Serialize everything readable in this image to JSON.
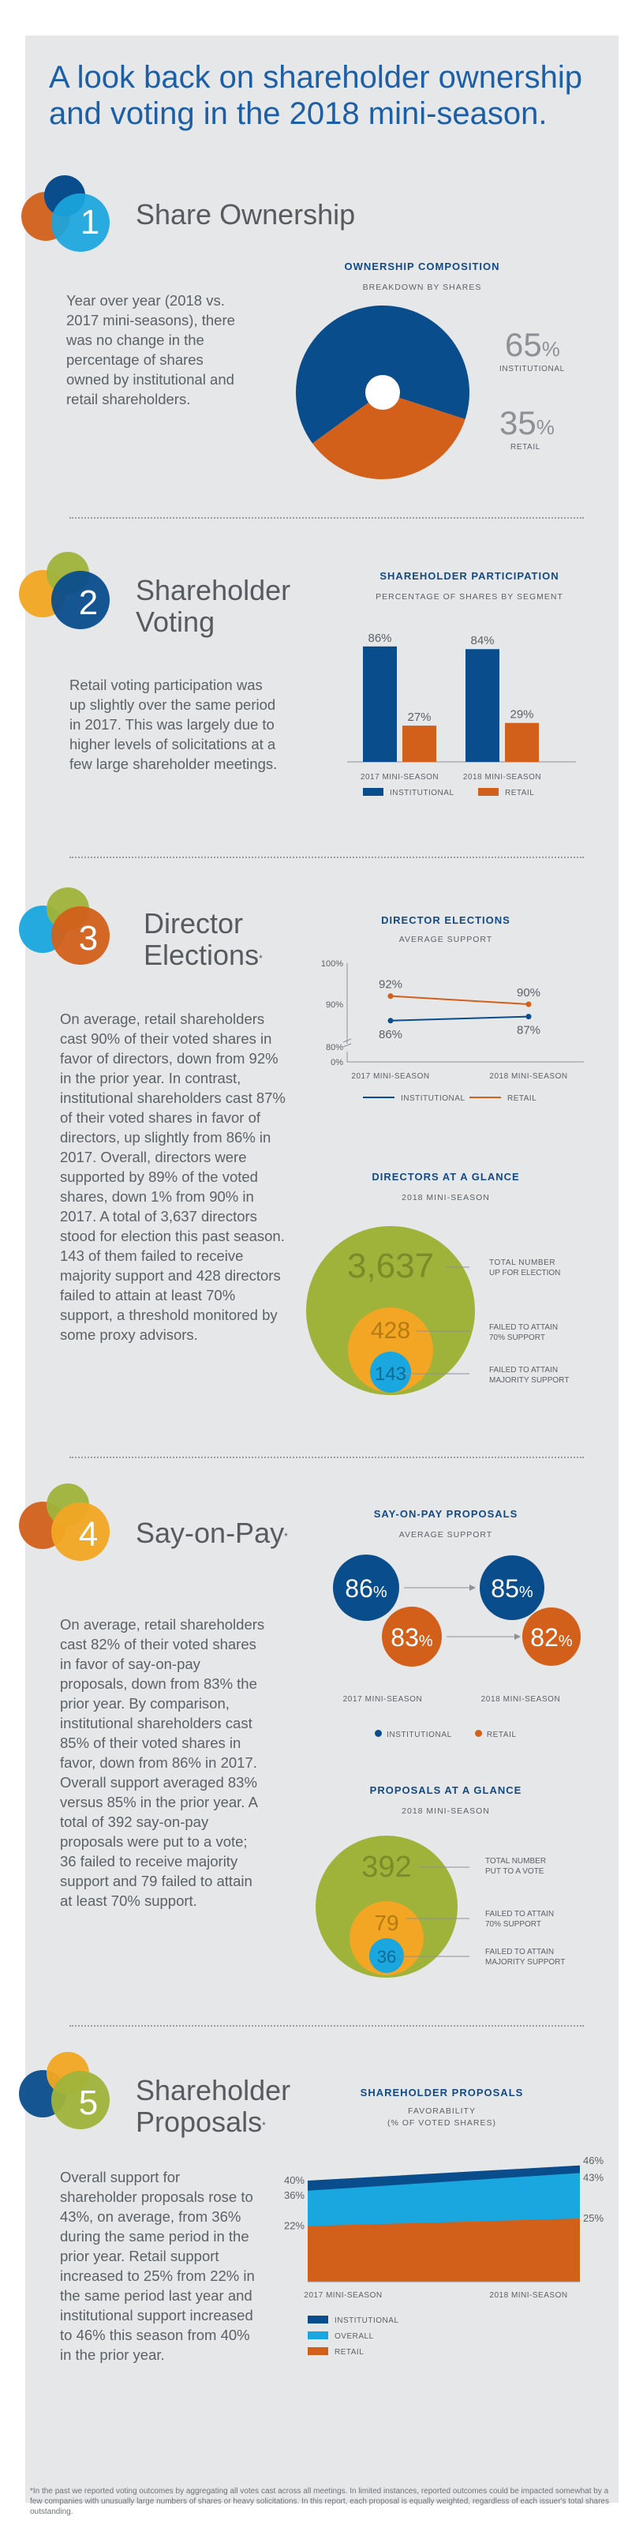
{
  "title": "A look back on shareholder ownership and voting in the 2018 mini-season.",
  "colors": {
    "blue": "#0a4d8c",
    "orange": "#d2601a",
    "lightblue": "#1aa6de",
    "green": "#9fb33a",
    "yellow": "#f2a623",
    "panel": "#e6e7e8"
  },
  "s1": {
    "number": "1",
    "title": "Share Ownership",
    "body": "Year over year (2018 vs. 2017 mini-seasons), there was no change in the percentage of shares owned by institutional and retail shareholders.",
    "chart_title": "OWNERSHIP COMPOSITION",
    "chart_sub": "BREAKDOWN BY SHARES",
    "inst_pct": "65",
    "inst_label": "INSTITUTIONAL",
    "retail_pct": "35",
    "retail_label": "RETAIL",
    "pct_sign": "%"
  },
  "s2": {
    "number": "2",
    "title1": "Shareholder",
    "title2": "Voting",
    "body": "Retail voting participation was up slightly over the same period in 2017. This was largely due to higher levels of solicitations at a few large shareholder meetings.",
    "chart_title": "SHAREHOLDER PARTICIPATION",
    "chart_sub": "PERCENTAGE OF SHARES BY SEGMENT",
    "legend_inst": "INSTITUTIONAL",
    "legend_retail": "RETAIL"
  },
  "s3": {
    "number": "3",
    "title1": "Director",
    "title2": "Elections",
    "sup": "*",
    "body": "On average, retail shareholders cast 90% of their voted shares in favor of directors, down from 92% in the prior year. In contrast, institutional shareholders cast 87% of their voted shares in favor of directors, up slightly from 86% in 2017. Overall, directors were supported by 89% of the voted shares, down 1% from 90% in 2017. A total of 3,637 directors stood for election this past season. 143 of them failed to receive majority support and 428 directors failed to attain at least 70% support, a threshold monitored by some proxy advisors.",
    "chart_title": "DIRECTOR ELECTIONS",
    "chart_sub": "AVERAGE SUPPORT",
    "legend_inst": "INSTITUTIONAL",
    "legend_retail": "RETAIL",
    "glance_title": "DIRECTORS AT A GLANCE",
    "glance_sub": "2018 MINI-SEASON",
    "big": "3,637",
    "mid": "428",
    "small": "143",
    "big_lbl1": "TOTAL NUMBER",
    "big_lbl2": "UP FOR ELECTION",
    "mid_lbl1": "FAILED TO ATTAIN",
    "mid_lbl2": "70% SUPPORT",
    "small_lbl1": "FAILED TO ATTAIN",
    "small_lbl2": "MAJORITY SUPPORT"
  },
  "s4": {
    "number": "4",
    "title": "Say-on-Pay",
    "sup": "*",
    "body": "On average, retail shareholders cast 82% of their voted shares in favor of say-on-pay proposals, down from 83% the prior year. By comparison, institutional shareholders cast 85% of their voted shares in favor, down from 86% in 2017. Overall support averaged 83% versus 85% in the prior year. A total of 392 say-on-pay proposals were put to a vote; 36 failed to receive majority support and 79 failed to attain at least 70% support.",
    "chart_title": "SAY-ON-PAY PROPOSALS",
    "chart_sub": "AVERAGE SUPPORT",
    "inst_2017": "86",
    "retail_2017": "83",
    "inst_2018": "85",
    "retail_2018": "82",
    "pct": "%",
    "label_2017": "2017 MINI-SEASON",
    "label_2018": "2018 MINI-SEASON",
    "legend_inst": "INSTITUTIONAL",
    "legend_retail": "RETAIL",
    "glance_title": "PROPOSALS AT A GLANCE",
    "glance_sub": "2018 MINI-SEASON",
    "big": "392",
    "mid": "79",
    "small": "36",
    "big_lbl1": "TOTAL NUMBER",
    "big_lbl2": "PUT TO A VOTE",
    "mid_lbl1": "FAILED TO ATTAIN",
    "mid_lbl2": "70% SUPPORT",
    "small_lbl1": "FAILED TO ATTAIN",
    "small_lbl2": "MAJORITY SUPPORT"
  },
  "s5": {
    "number": "5",
    "title1": "Shareholder",
    "title2": "Proposals",
    "sup": "*",
    "body": "Overall support for shareholder proposals rose to 43%, on average, from 36% during the same period in the prior year. Retail support increased to 25% from 22% in the same period last year and institutional support increased to 46% this season from 40% in the prior year.",
    "chart_title": "SHAREHOLDER PROPOSALS",
    "chart_sub1": "FAVORABILITY",
    "chart_sub2": "(% OF VOTED SHARES)",
    "legend_inst": "INSTITUTIONAL",
    "legend_overall": "OVERALL",
    "legend_retail": "RETAIL"
  },
  "footnote": "*In the past we reported voting outcomes by aggregating all votes cast across all meetings. In limited instances, reported outcomes could be impacted somewhat by a few companies with unusually large numbers of shares or heavy solicitations. In this report, each proposal is equally weighted, regardless of each issuer's total shares outstanding.",
  "chart_data": [
    {
      "type": "pie",
      "title": "OWNERSHIP COMPOSITION",
      "subtitle": "BREAKDOWN BY SHARES",
      "categories": [
        "INSTITUTIONAL",
        "RETAIL"
      ],
      "values": [
        65,
        35
      ]
    },
    {
      "type": "bar",
      "title": "SHAREHOLDER PARTICIPATION",
      "subtitle": "PERCENTAGE OF SHARES BY SEGMENT",
      "categories": [
        "2017 MINI-SEASON",
        "2018 MINI-SEASON"
      ],
      "series": [
        {
          "name": "INSTITUTIONAL",
          "values": [
            86,
            84
          ]
        },
        {
          "name": "RETAIL",
          "values": [
            27,
            29
          ]
        }
      ],
      "value_labels": [
        [
          "86%",
          "84%"
        ],
        [
          "27%",
          "29%"
        ]
      ],
      "ylim": [
        0,
        100
      ]
    },
    {
      "type": "line",
      "title": "DIRECTOR ELECTIONS",
      "subtitle": "AVERAGE SUPPORT",
      "categories": [
        "2017 MINI-SEASON",
        "2018 MINI-SEASON"
      ],
      "series": [
        {
          "name": "INSTITUTIONAL",
          "values": [
            86,
            87
          ]
        },
        {
          "name": "RETAIL",
          "values": [
            92,
            90
          ]
        }
      ],
      "value_labels": [
        [
          "86%",
          "87%"
        ],
        [
          "92%",
          "90%"
        ]
      ],
      "yticks": [
        "100%",
        "90%",
        "80%",
        "0%"
      ],
      "axis_break": true
    },
    {
      "type": "area",
      "title": "SHAREHOLDER PROPOSALS",
      "subtitle": "FAVORABILITY (% OF VOTED SHARES)",
      "categories": [
        "2017 MINI-SEASON",
        "2018 MINI-SEASON"
      ],
      "series": [
        {
          "name": "INSTITUTIONAL",
          "values": [
            40,
            46
          ]
        },
        {
          "name": "OVERALL",
          "values": [
            36,
            43
          ]
        },
        {
          "name": "RETAIL",
          "values": [
            22,
            25
          ]
        }
      ],
      "value_labels": [
        [
          "40%",
          "46%"
        ],
        [
          "36%",
          "43%"
        ],
        [
          "22%",
          "25%"
        ]
      ]
    }
  ]
}
